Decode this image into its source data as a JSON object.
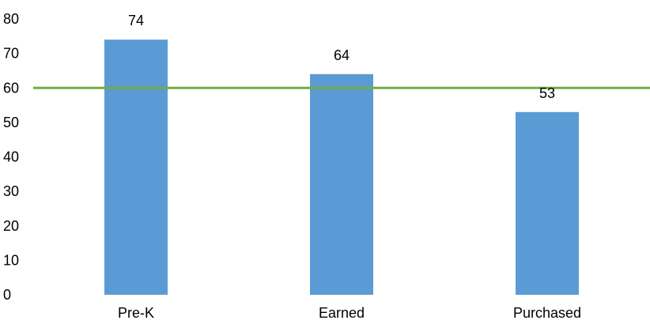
{
  "chart_data": {
    "type": "bar",
    "title": "",
    "xlabel": "",
    "ylabel": "",
    "categories": [
      "Pre-K",
      "Earned",
      "Purchased"
    ],
    "values": [
      74,
      64,
      53
    ],
    "value_labels": [
      "74",
      "64",
      "53"
    ],
    "ylim": [
      0,
      80
    ],
    "yticks": [
      0,
      10,
      20,
      30,
      40,
      50,
      60,
      70,
      80
    ],
    "ytick_labels": [
      "0",
      "10",
      "20",
      "30",
      "40",
      "50",
      "60",
      "70",
      "80"
    ],
    "reference_line": {
      "value": 60
    },
    "grid": false,
    "legend": "none",
    "colors": {
      "bar": "#5b9bd5",
      "reference_line": "#70ad47",
      "text": "#000000"
    }
  }
}
